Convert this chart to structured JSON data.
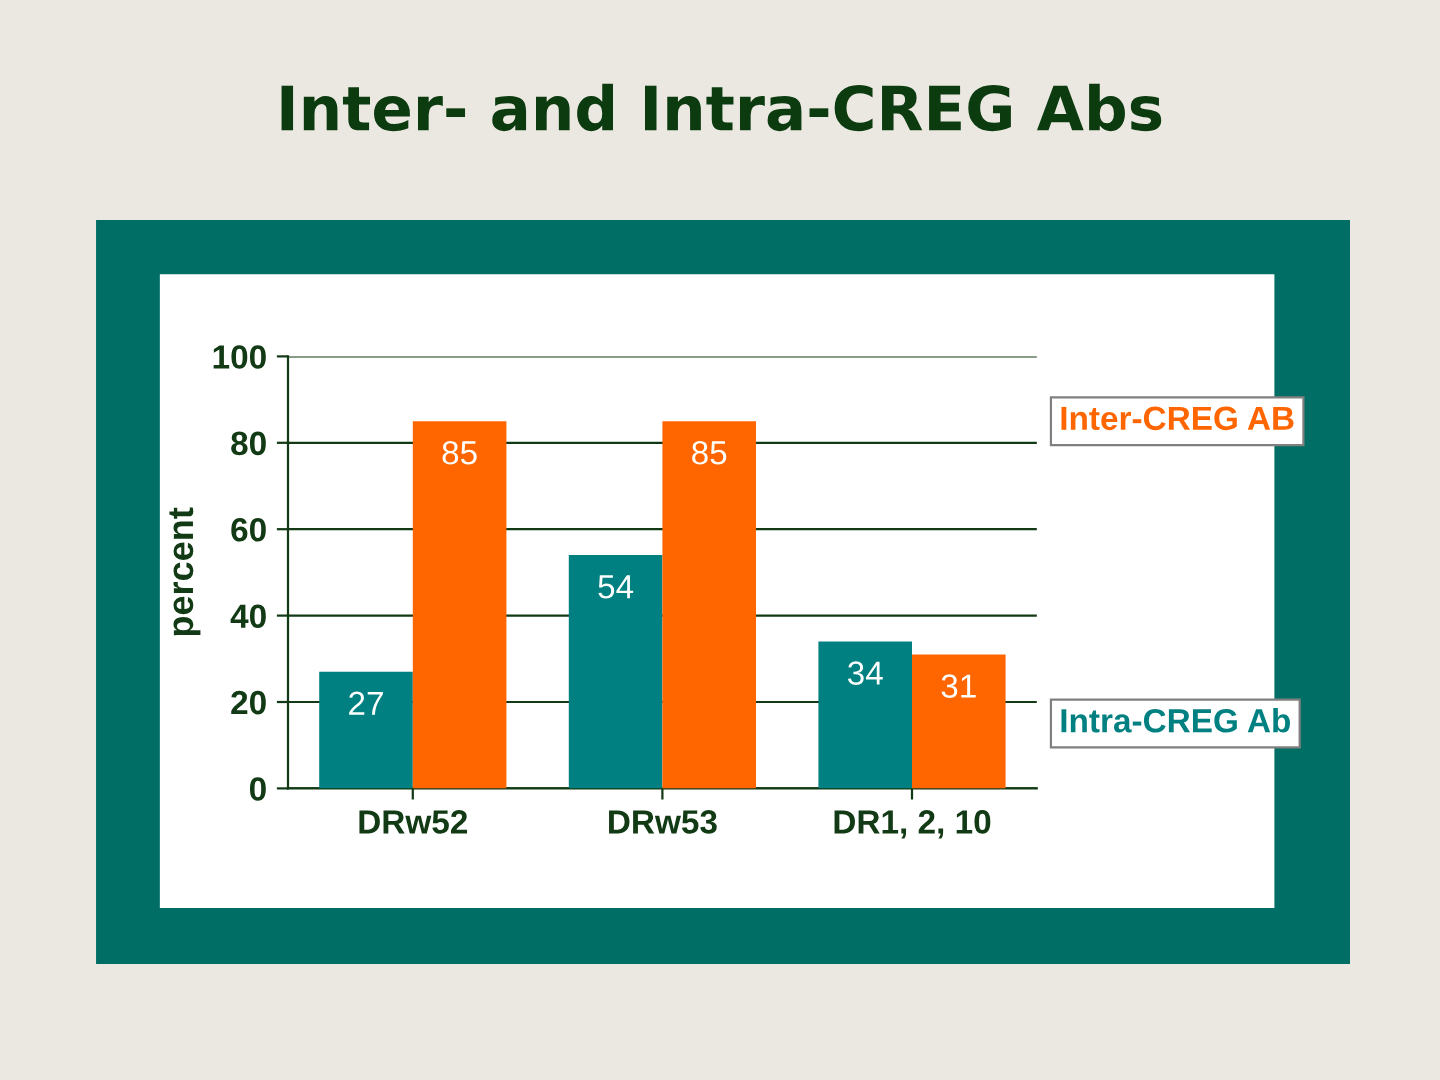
{
  "chart_data": {
    "type": "bar",
    "title": "Inter- and Intra-CREG Abs",
    "ylabel": "percent",
    "categories": [
      "DRw52",
      "DRw53",
      "DR1, 2, 10"
    ],
    "series": [
      {
        "name": "Intra-CREG Ab",
        "color": "#008080",
        "values": [
          27,
          54,
          34
        ]
      },
      {
        "name": "Inter-CREG AB",
        "color": "#ff6600",
        "values": [
          85,
          85,
          31
        ]
      }
    ],
    "ylim": [
      0,
      100
    ],
    "yticks": [
      0,
      20,
      40,
      60,
      80,
      100
    ],
    "grid": "y",
    "data_labels": true
  }
}
